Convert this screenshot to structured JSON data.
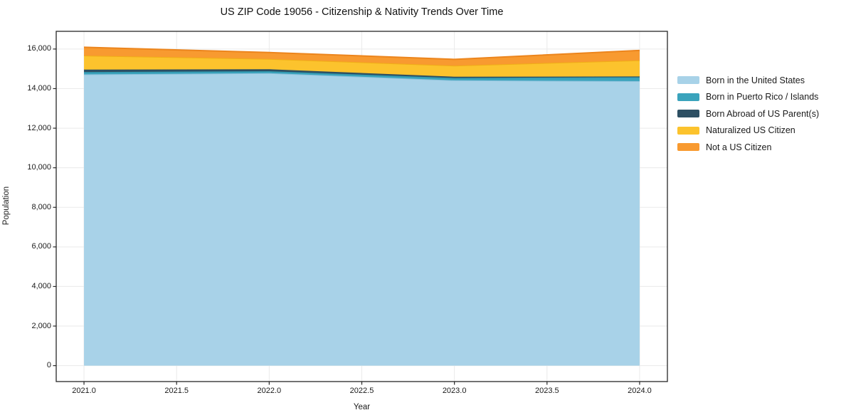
{
  "chart_data": {
    "type": "area",
    "stacked": true,
    "title": "US ZIP Code 19056 - Citizenship & Nativity Trends Over Time",
    "xlabel": "Year",
    "ylabel": "Population",
    "x": [
      2021,
      2022,
      2023,
      2024
    ],
    "series": [
      {
        "name": "Born in the United States",
        "color": "#a8d2e8",
        "edge_color": "#8cc1db",
        "values": [
          14720,
          14780,
          14420,
          14380
        ]
      },
      {
        "name": "Born in Puerto Rico / Islands",
        "color": "#3aa3bc",
        "edge_color": "#2f93aa",
        "values": [
          120,
          100,
          120,
          200
        ]
      },
      {
        "name": "Born Abroad of US Parent(s)",
        "color": "#2d4f63",
        "edge_color": "#27someone455a",
        "values": [
          120,
          100,
          60,
          35
        ]
      },
      {
        "name": "Naturalized US Citizen",
        "color": "#fcc32d",
        "edge_color": "#f0ad17",
        "values": [
          710,
          520,
          560,
          815
        ]
      },
      {
        "name": "Not a US Citizen",
        "color": "#f89a30",
        "edge_color": "#ec851d",
        "values": [
          420,
          325,
          320,
          500
        ]
      }
    ],
    "totals": [
      16090,
      15825,
      15480,
      15930
    ],
    "xlim": [
      2020.85,
      2024.15
    ],
    "ylim": [
      -805,
      16895
    ],
    "xticks": [
      2021.0,
      2021.5,
      2022.0,
      2022.5,
      2023.0,
      2023.5,
      2024.0
    ],
    "xtick_labels": [
      "2021.0",
      "2021.5",
      "2022.0",
      "2022.5",
      "2023.0",
      "2023.5",
      "2024.0"
    ],
    "yticks": [
      0,
      2000,
      4000,
      6000,
      8000,
      10000,
      12000,
      14000,
      16000
    ],
    "ytick_labels": [
      "0",
      "2,000",
      "4,000",
      "6,000",
      "8,000",
      "10,000",
      "12,000",
      "14,000",
      "16,000"
    ],
    "grid": true,
    "legend_position": "right-outside",
    "colors": {
      "spine": "#262626",
      "grid": "#eaeaea",
      "text": "#1a1a1a",
      "background": "#ffffff"
    }
  }
}
